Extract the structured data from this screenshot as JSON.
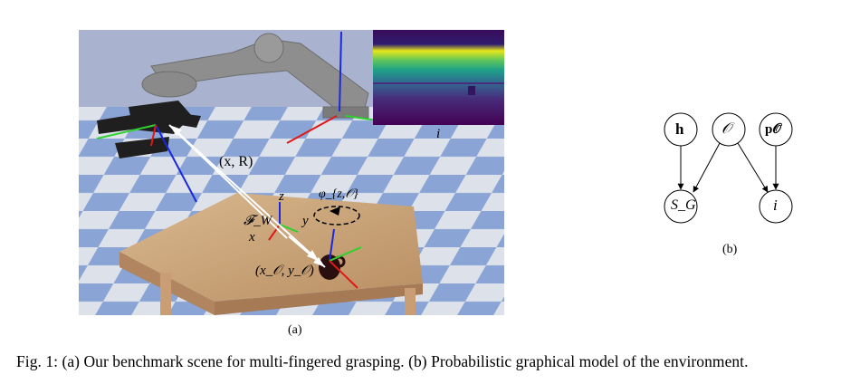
{
  "figure": {
    "panel_a": {
      "label": "(a)",
      "pose_label": "(x, R)",
      "frame_label": "𝓕_W",
      "axis_z": "z",
      "axis_y": "y",
      "axis_x": "x",
      "rotation_label": "φ_{z,𝒪}",
      "object_position_label": "(x_𝒪, y_𝒪)",
      "depth_image_label": "i"
    },
    "panel_b": {
      "label": "(b)",
      "nodes": [
        {
          "id": "h",
          "label": "h"
        },
        {
          "id": "O",
          "label": "𝒪"
        },
        {
          "id": "pO",
          "label": "p𝒪"
        },
        {
          "id": "SG",
          "label": "S_G"
        },
        {
          "id": "i",
          "label": "i"
        }
      ],
      "edges": [
        [
          "h",
          "SG"
        ],
        [
          "O",
          "SG"
        ],
        [
          "O",
          "i"
        ],
        [
          "pO",
          "i"
        ]
      ]
    },
    "caption": "Fig. 1: (a) Our benchmark scene for multi-fingered grasping. (b) Probabilistic graphical model of the environment."
  },
  "colors": {
    "floor_blue": "#8aa4d6",
    "floor_light": "#dde2ea",
    "sky": "#a9b3cf",
    "table": "#c9a57e",
    "robot_arm": "#8a8a8a",
    "axis_red": "#e01818",
    "axis_green": "#2ed12e",
    "axis_blue": "#1a28e0"
  }
}
